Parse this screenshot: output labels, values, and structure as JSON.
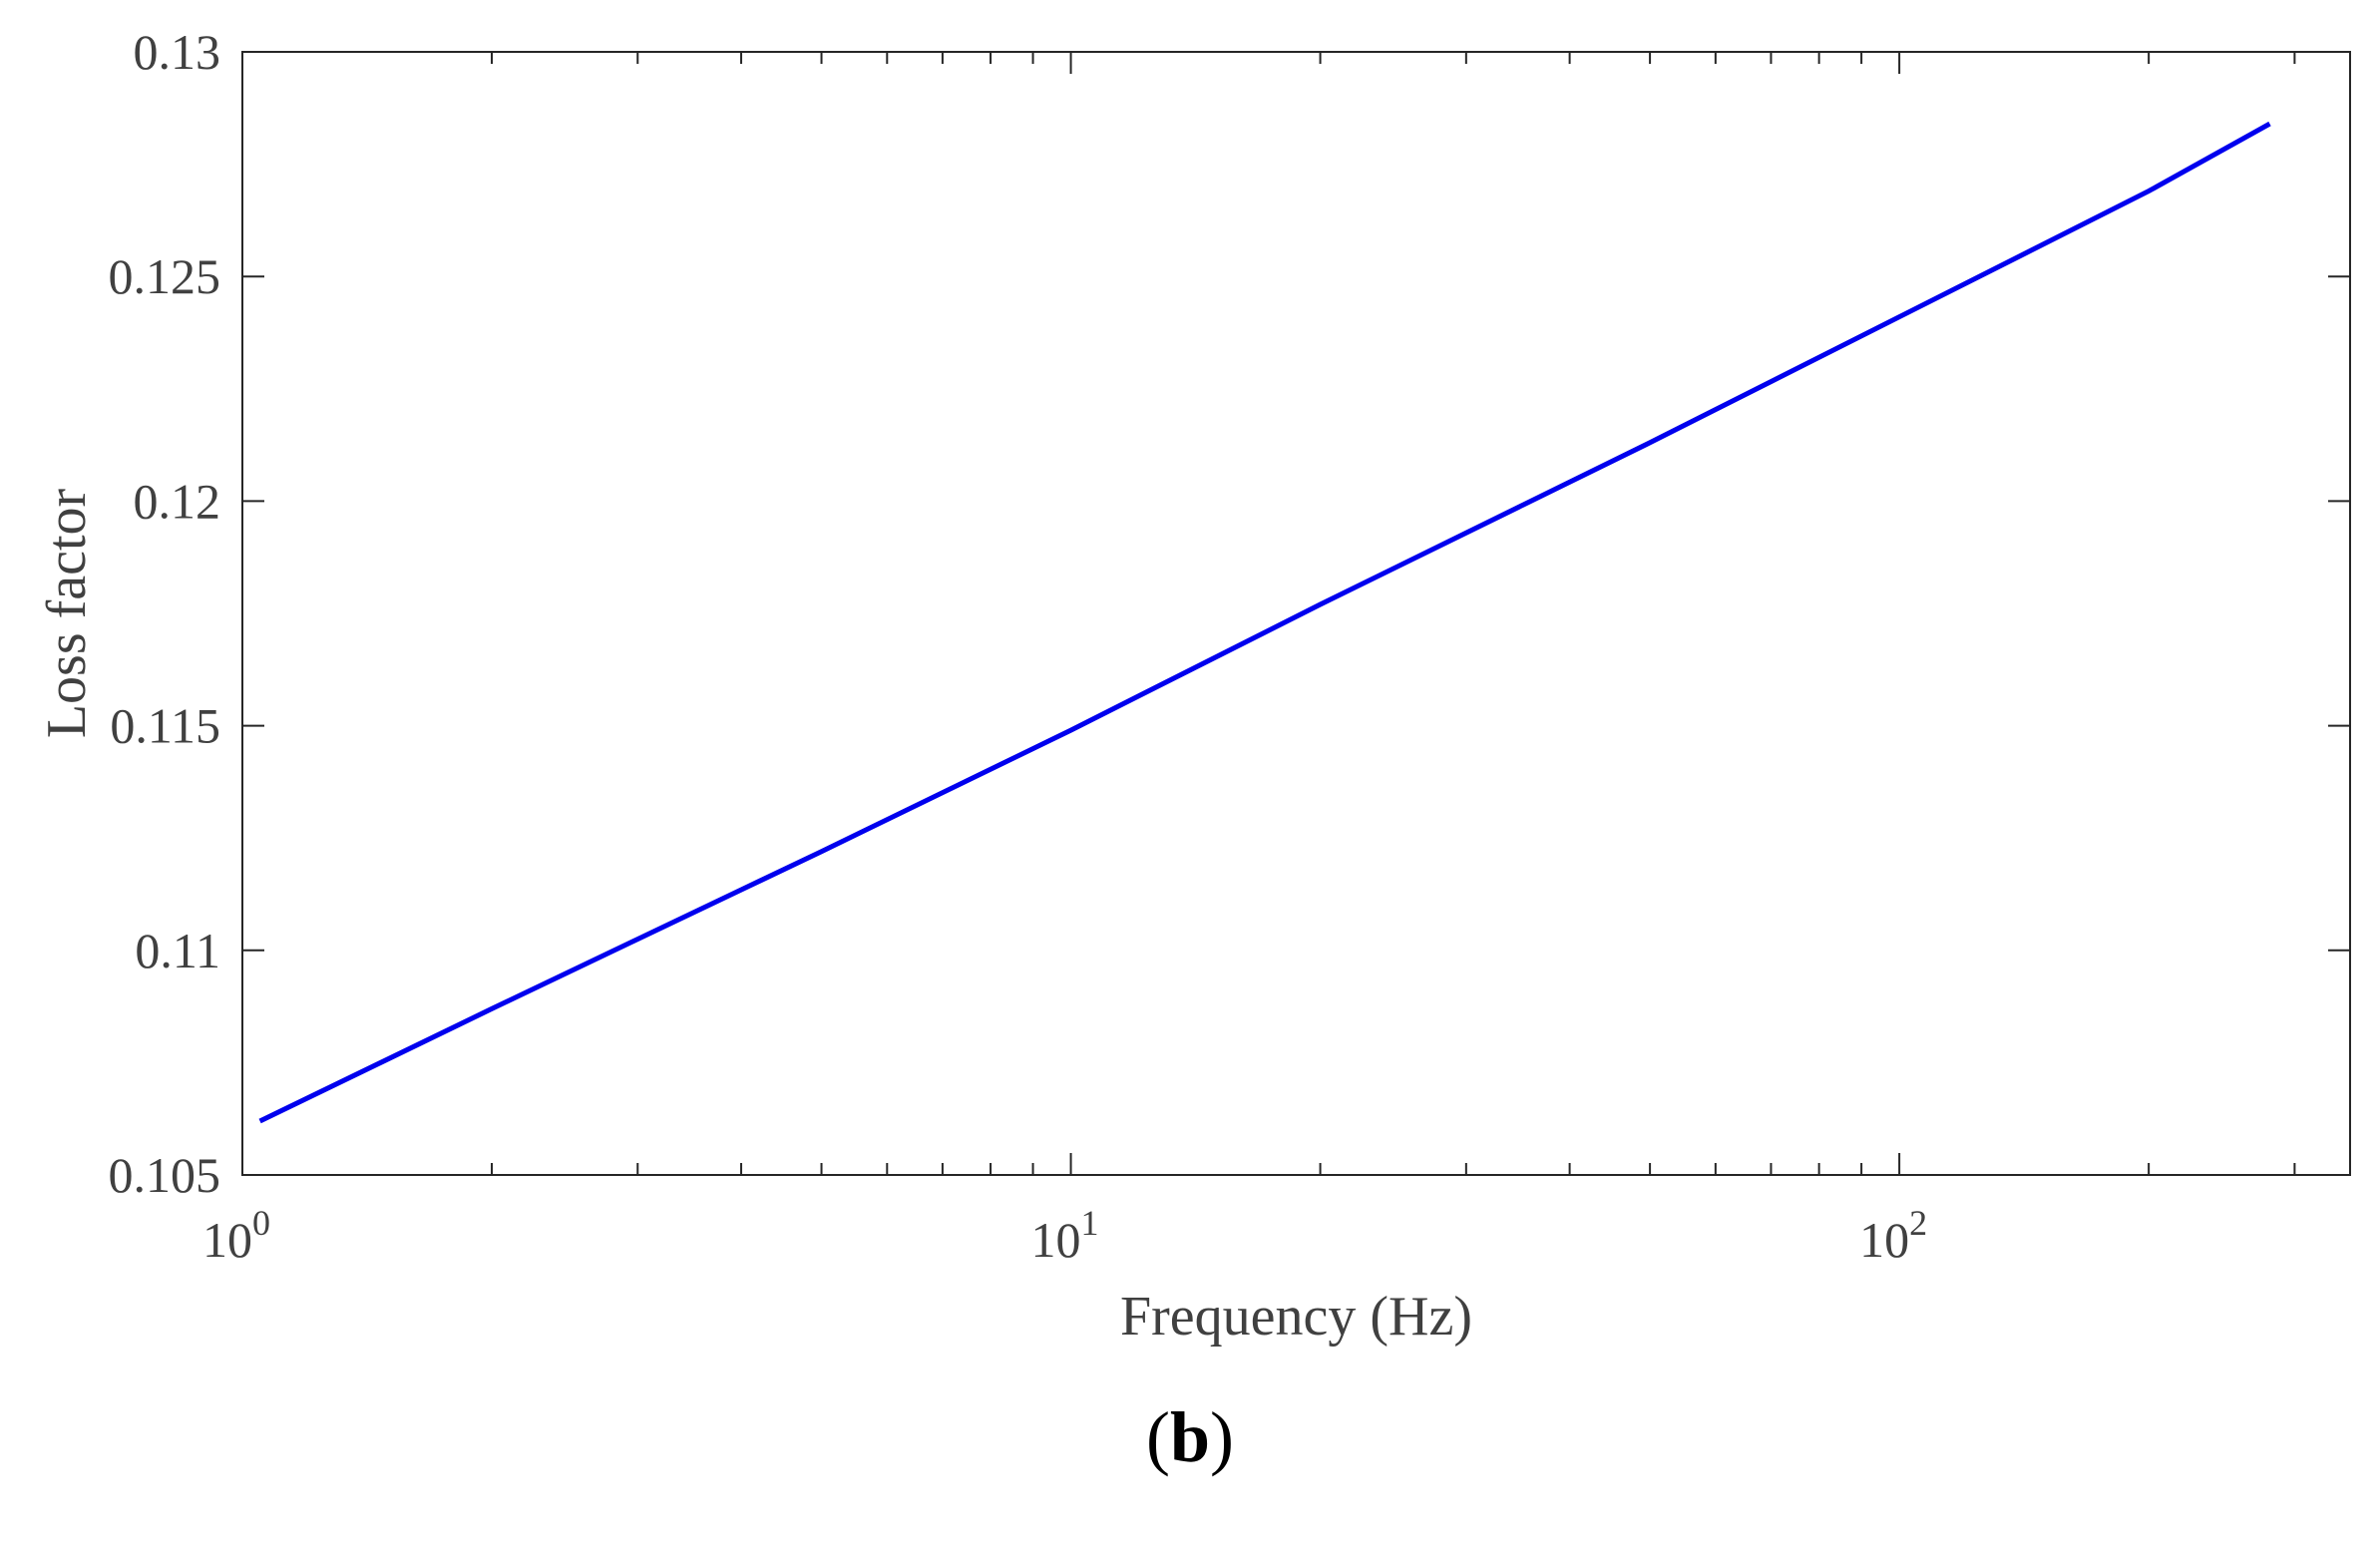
{
  "chart_data": {
    "type": "line",
    "title": "",
    "xlabel": "Frequency (Hz)",
    "ylabel": "Loss factor",
    "xscale": "log",
    "xlim": [
      1,
      350
    ],
    "ylim": [
      0.105,
      0.13
    ],
    "grid": false,
    "x_ticks": [
      {
        "base": "10",
        "exp": "0",
        "value": 1
      },
      {
        "base": "10",
        "exp": "1",
        "value": 10
      },
      {
        "base": "10",
        "exp": "2",
        "value": 100
      }
    ],
    "y_ticks": [
      "0.105",
      "0.11",
      "0.115",
      "0.12",
      "0.125",
      "0.13"
    ],
    "series": [
      {
        "color": "#0000ee",
        "x": [
          1.05,
          2,
          5,
          10,
          20,
          50,
          100,
          200,
          280
        ],
        "y": [
          0.1062,
          0.1087,
          0.1122,
          0.1149,
          0.1177,
          0.1213,
          0.1241,
          0.1269,
          0.1284
        ]
      }
    ]
  },
  "panel_label": "b",
  "panel_open": "(",
  "panel_close": ")"
}
